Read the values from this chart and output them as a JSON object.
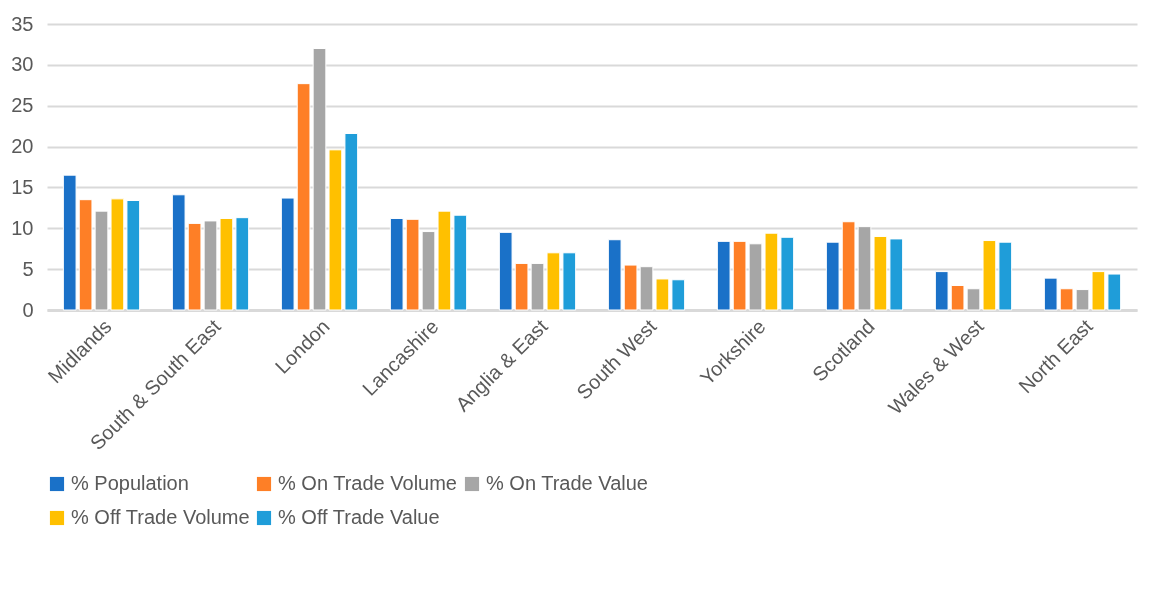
{
  "chart_data": {
    "type": "bar",
    "categories": [
      "Midlands",
      "South & South East",
      "London",
      "Lancashire",
      "Anglia & East",
      "South West",
      "Yorkshire",
      "Scotland",
      "Wales & West",
      "North East"
    ],
    "series": [
      {
        "name": "% Population",
        "color": "#1a71c8",
        "values": [
          16.5,
          14.1,
          13.7,
          11.2,
          9.5,
          8.6,
          8.4,
          8.3,
          4.7,
          3.9
        ]
      },
      {
        "name": "% On Trade Volume",
        "color": "#fe7f26",
        "values": [
          13.5,
          10.6,
          27.7,
          11.1,
          5.7,
          5.5,
          8.4,
          10.8,
          3.0,
          2.6
        ]
      },
      {
        "name": "% On Trade Value",
        "color": "#a6a6a6",
        "values": [
          12.1,
          10.9,
          32.0,
          9.6,
          5.7,
          5.3,
          8.1,
          10.2,
          2.6,
          2.5
        ]
      },
      {
        "name": "% Off Trade Volume",
        "color": "#ffc000",
        "values": [
          13.6,
          11.2,
          19.6,
          12.1,
          7.0,
          3.8,
          9.4,
          9.0,
          8.5,
          4.7
        ]
      },
      {
        "name": "% Off Trade Value",
        "color": "#1f9dd9",
        "values": [
          13.4,
          11.3,
          21.6,
          11.6,
          7.0,
          3.7,
          8.9,
          8.7,
          8.3,
          4.4
        ]
      }
    ],
    "ylim": [
      0,
      35
    ],
    "yticks": [
      0,
      5,
      10,
      15,
      20,
      25,
      30,
      35
    ],
    "grid": "y",
    "legend": "bottom"
  }
}
